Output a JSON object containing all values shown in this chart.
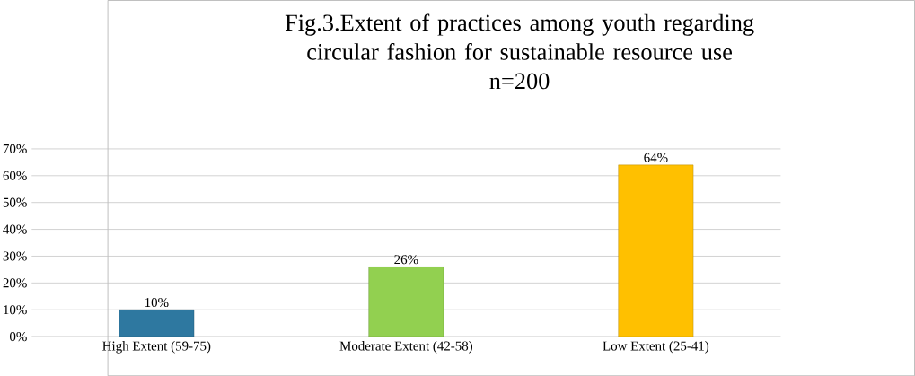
{
  "chart_data": {
    "type": "bar",
    "title": "Fig.3.Extent of practices among youth regarding circular fashion for sustainable resource use",
    "subtitle": "n=200",
    "categories": [
      "High Extent (59-75)",
      "Moderate Extent (42-58)",
      "Low Extent (25-41)"
    ],
    "values": [
      10,
      26,
      64
    ],
    "colors": [
      "#2e78a0",
      "#92d050",
      "#ffc000"
    ],
    "value_labels": [
      "10%",
      "26%",
      "64%"
    ],
    "ylim": [
      0,
      70
    ],
    "yticks": [
      {
        "value": 0,
        "label": "0%"
      },
      {
        "value": 10,
        "label": "10%"
      },
      {
        "value": 20,
        "label": "20%"
      },
      {
        "value": 30,
        "label": "30%"
      },
      {
        "value": 40,
        "label": "40%"
      },
      {
        "value": 50,
        "label": "50%"
      },
      {
        "value": 60,
        "label": "60%"
      },
      {
        "value": 70,
        "label": "70%"
      }
    ],
    "grid": "y"
  }
}
